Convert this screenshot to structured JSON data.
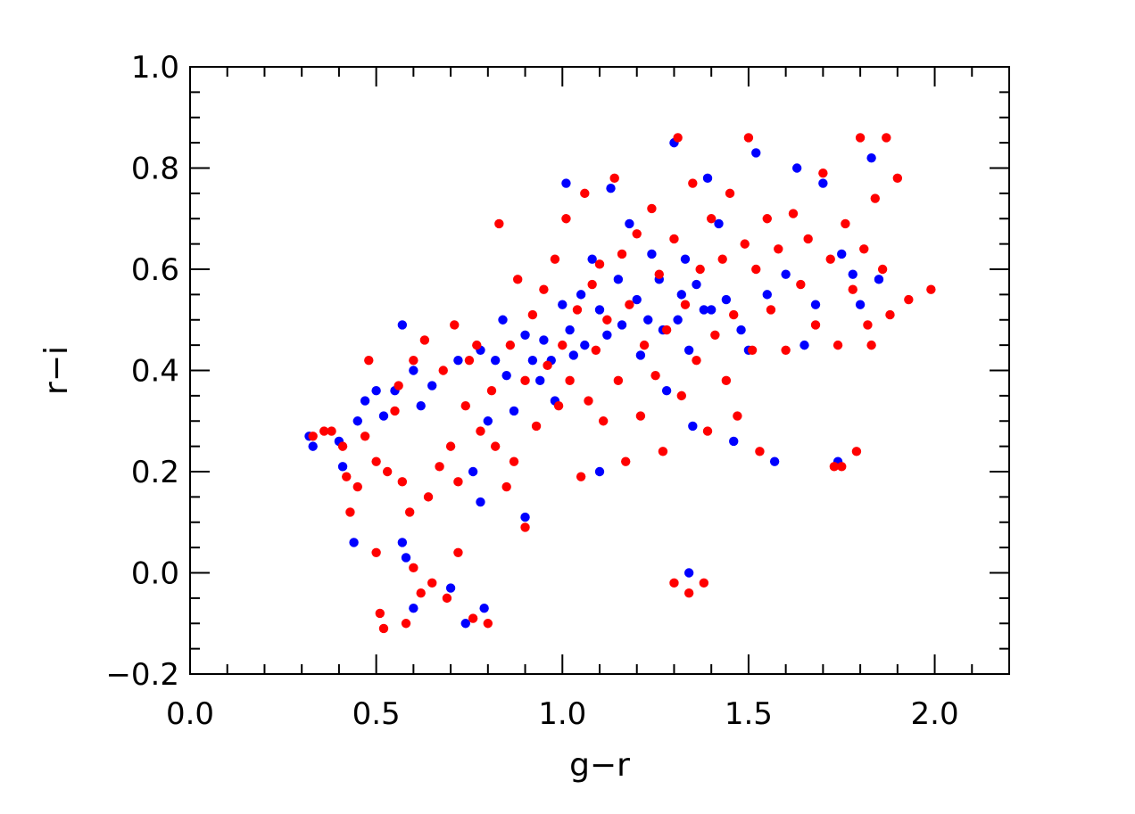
{
  "chart_data": {
    "type": "scatter",
    "title": "",
    "xlabel": "g−r",
    "ylabel": "r−i",
    "xlim": [
      0.0,
      2.2
    ],
    "ylim": [
      -0.2,
      1.0
    ],
    "xticks": [
      0.0,
      0.5,
      1.0,
      1.5,
      2.0
    ],
    "xtick_labels": [
      "0.0",
      "0.5",
      "1.0",
      "1.5",
      "2.0"
    ],
    "xminor_step": 0.1,
    "yticks": [
      -0.2,
      0.0,
      0.2,
      0.4,
      0.6,
      0.8,
      1.0
    ],
    "ytick_labels": [
      "−0.2",
      "0.0",
      "0.2",
      "0.4",
      "0.6",
      "0.8",
      "1.0"
    ],
    "yminor_step": 0.05,
    "grid": false,
    "legend": "none",
    "series": [
      {
        "color": "#0000ff",
        "points": [
          [
            0.32,
            0.27
          ],
          [
            0.33,
            0.25
          ],
          [
            0.4,
            0.26
          ],
          [
            0.41,
            0.21
          ],
          [
            0.44,
            0.06
          ],
          [
            0.45,
            0.3
          ],
          [
            0.47,
            0.34
          ],
          [
            0.5,
            0.36
          ],
          [
            0.52,
            0.31
          ],
          [
            0.55,
            0.36
          ],
          [
            0.57,
            0.49
          ],
          [
            0.57,
            0.06
          ],
          [
            0.58,
            0.03
          ],
          [
            0.6,
            0.4
          ],
          [
            0.6,
            -0.07
          ],
          [
            0.62,
            0.33
          ],
          [
            0.65,
            0.37
          ],
          [
            0.7,
            -0.03
          ],
          [
            0.72,
            0.42
          ],
          [
            0.74,
            -0.1
          ],
          [
            0.76,
            0.2
          ],
          [
            0.78,
            0.14
          ],
          [
            0.78,
            0.44
          ],
          [
            0.79,
            -0.07
          ],
          [
            0.8,
            0.3
          ],
          [
            0.82,
            0.42
          ],
          [
            0.84,
            0.5
          ],
          [
            0.85,
            0.39
          ],
          [
            0.87,
            0.32
          ],
          [
            0.9,
            0.11
          ],
          [
            0.9,
            0.47
          ],
          [
            0.92,
            0.42
          ],
          [
            0.94,
            0.38
          ],
          [
            0.95,
            0.46
          ],
          [
            0.97,
            0.42
          ],
          [
            0.98,
            0.34
          ],
          [
            1.0,
            0.53
          ],
          [
            1.01,
            0.77
          ],
          [
            1.02,
            0.48
          ],
          [
            1.03,
            0.43
          ],
          [
            1.05,
            0.55
          ],
          [
            1.06,
            0.45
          ],
          [
            1.08,
            0.62
          ],
          [
            1.1,
            0.52
          ],
          [
            1.1,
            0.2
          ],
          [
            1.12,
            0.47
          ],
          [
            1.13,
            0.76
          ],
          [
            1.15,
            0.58
          ],
          [
            1.16,
            0.49
          ],
          [
            1.18,
            0.69
          ],
          [
            1.2,
            0.54
          ],
          [
            1.21,
            0.43
          ],
          [
            1.23,
            0.5
          ],
          [
            1.24,
            0.63
          ],
          [
            1.26,
            0.58
          ],
          [
            1.27,
            0.48
          ],
          [
            1.28,
            0.36
          ],
          [
            1.3,
            0.85
          ],
          [
            1.31,
            0.5
          ],
          [
            1.32,
            0.55
          ],
          [
            1.33,
            0.62
          ],
          [
            1.34,
            0.44
          ],
          [
            1.34,
            0.0
          ],
          [
            1.35,
            0.29
          ],
          [
            1.36,
            0.57
          ],
          [
            1.38,
            0.52
          ],
          [
            1.39,
            0.78
          ],
          [
            1.4,
            0.52
          ],
          [
            1.42,
            0.69
          ],
          [
            1.44,
            0.54
          ],
          [
            1.46,
            0.26
          ],
          [
            1.48,
            0.48
          ],
          [
            1.5,
            0.44
          ],
          [
            1.52,
            0.83
          ],
          [
            1.55,
            0.55
          ],
          [
            1.57,
            0.22
          ],
          [
            1.6,
            0.59
          ],
          [
            1.63,
            0.8
          ],
          [
            1.65,
            0.45
          ],
          [
            1.68,
            0.53
          ],
          [
            1.7,
            0.77
          ],
          [
            1.74,
            0.22
          ],
          [
            1.75,
            0.63
          ],
          [
            1.78,
            0.59
          ],
          [
            1.8,
            0.53
          ],
          [
            1.83,
            0.82
          ],
          [
            1.85,
            0.58
          ]
        ]
      },
      {
        "color": "#ff0000",
        "points": [
          [
            0.33,
            0.27
          ],
          [
            0.36,
            0.28
          ],
          [
            0.38,
            0.28
          ],
          [
            0.41,
            0.25
          ],
          [
            0.42,
            0.19
          ],
          [
            0.43,
            0.12
          ],
          [
            0.45,
            0.17
          ],
          [
            0.47,
            0.27
          ],
          [
            0.48,
            0.42
          ],
          [
            0.5,
            0.22
          ],
          [
            0.5,
            0.04
          ],
          [
            0.51,
            -0.08
          ],
          [
            0.52,
            -0.11
          ],
          [
            0.53,
            0.2
          ],
          [
            0.55,
            0.32
          ],
          [
            0.56,
            0.37
          ],
          [
            0.57,
            0.18
          ],
          [
            0.58,
            -0.1
          ],
          [
            0.59,
            0.12
          ],
          [
            0.6,
            0.42
          ],
          [
            0.6,
            0.01
          ],
          [
            0.62,
            -0.04
          ],
          [
            0.63,
            0.46
          ],
          [
            0.64,
            0.15
          ],
          [
            0.65,
            -0.02
          ],
          [
            0.67,
            0.21
          ],
          [
            0.68,
            0.4
          ],
          [
            0.69,
            -0.05
          ],
          [
            0.7,
            0.25
          ],
          [
            0.71,
            0.49
          ],
          [
            0.72,
            0.18
          ],
          [
            0.72,
            0.04
          ],
          [
            0.74,
            0.33
          ],
          [
            0.75,
            0.42
          ],
          [
            0.76,
            -0.09
          ],
          [
            0.77,
            0.45
          ],
          [
            0.78,
            0.28
          ],
          [
            0.8,
            -0.1
          ],
          [
            0.81,
            0.36
          ],
          [
            0.82,
            0.25
          ],
          [
            0.83,
            0.69
          ],
          [
            0.85,
            0.17
          ],
          [
            0.86,
            0.45
          ],
          [
            0.87,
            0.22
          ],
          [
            0.88,
            0.58
          ],
          [
            0.9,
            0.09
          ],
          [
            0.9,
            0.38
          ],
          [
            0.92,
            0.51
          ],
          [
            0.93,
            0.29
          ],
          [
            0.95,
            0.56
          ],
          [
            0.96,
            0.41
          ],
          [
            0.98,
            0.62
          ],
          [
            0.99,
            0.33
          ],
          [
            1.0,
            0.45
          ],
          [
            1.01,
            0.7
          ],
          [
            1.02,
            0.38
          ],
          [
            1.04,
            0.52
          ],
          [
            1.05,
            0.19
          ],
          [
            1.06,
            0.75
          ],
          [
            1.07,
            0.34
          ],
          [
            1.08,
            0.57
          ],
          [
            1.09,
            0.44
          ],
          [
            1.1,
            0.61
          ],
          [
            1.11,
            0.3
          ],
          [
            1.12,
            0.5
          ],
          [
            1.14,
            0.78
          ],
          [
            1.15,
            0.38
          ],
          [
            1.16,
            0.63
          ],
          [
            1.17,
            0.22
          ],
          [
            1.18,
            0.53
          ],
          [
            1.2,
            0.67
          ],
          [
            1.21,
            0.31
          ],
          [
            1.22,
            0.45
          ],
          [
            1.24,
            0.72
          ],
          [
            1.25,
            0.39
          ],
          [
            1.26,
            0.59
          ],
          [
            1.27,
            0.24
          ],
          [
            1.28,
            0.48
          ],
          [
            1.3,
            0.66
          ],
          [
            1.3,
            -0.02
          ],
          [
            1.31,
            0.86
          ],
          [
            1.32,
            0.35
          ],
          [
            1.33,
            0.53
          ],
          [
            1.34,
            -0.04
          ],
          [
            1.35,
            0.77
          ],
          [
            1.36,
            0.42
          ],
          [
            1.37,
            0.6
          ],
          [
            1.38,
            -0.02
          ],
          [
            1.39,
            0.28
          ],
          [
            1.4,
            0.7
          ],
          [
            1.41,
            0.47
          ],
          [
            1.43,
            0.62
          ],
          [
            1.44,
            0.38
          ],
          [
            1.45,
            0.75
          ],
          [
            1.46,
            0.51
          ],
          [
            1.47,
            0.31
          ],
          [
            1.49,
            0.65
          ],
          [
            1.5,
            0.86
          ],
          [
            1.51,
            0.44
          ],
          [
            1.52,
            0.6
          ],
          [
            1.53,
            0.24
          ],
          [
            1.55,
            0.7
          ],
          [
            1.56,
            0.52
          ],
          [
            1.58,
            0.64
          ],
          [
            1.6,
            0.44
          ],
          [
            1.62,
            0.71
          ],
          [
            1.64,
            0.57
          ],
          [
            1.66,
            0.66
          ],
          [
            1.68,
            0.49
          ],
          [
            1.7,
            0.79
          ],
          [
            1.72,
            0.62
          ],
          [
            1.73,
            0.21
          ],
          [
            1.74,
            0.45
          ],
          [
            1.75,
            0.21
          ],
          [
            1.76,
            0.69
          ],
          [
            1.78,
            0.56
          ],
          [
            1.79,
            0.24
          ],
          [
            1.8,
            0.86
          ],
          [
            1.81,
            0.64
          ],
          [
            1.82,
            0.49
          ],
          [
            1.83,
            0.45
          ],
          [
            1.84,
            0.74
          ],
          [
            1.86,
            0.6
          ],
          [
            1.87,
            0.86
          ],
          [
            1.88,
            0.51
          ],
          [
            1.9,
            0.78
          ],
          [
            1.93,
            0.54
          ],
          [
            1.99,
            0.56
          ]
        ]
      }
    ]
  }
}
